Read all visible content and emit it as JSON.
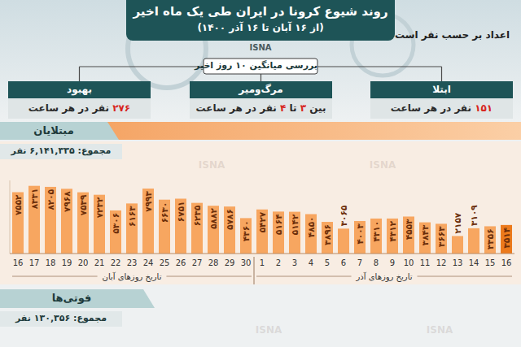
{
  "page": {
    "title": "روند شیوع کرونا در ایران طی یک ماه اخیر",
    "subtitle": "(از ۱۶ آبان تا ۱۶ آذر ۱۴۰۰)",
    "note": "اعداد بر حسب نفر است",
    "source": "ISNA",
    "watermark": "ISNA",
    "summary_title": "بررسی میانگین ۱۰ روز اخیر",
    "boxes": [
      {
        "label": "ابتلا",
        "parts": [
          {
            "text": "۱۵۱",
            "color": "#d7261e"
          },
          {
            "text": "نفر در هر ساعت"
          }
        ]
      },
      {
        "label": "مرگ‌ومیر",
        "parts": [
          {
            "text": "بین"
          },
          {
            "text": "۳",
            "color": "#d7261e"
          },
          {
            "text": "تا"
          },
          {
            "text": "۴",
            "color": "#d7261e"
          },
          {
            "text": "نفر در هر ساعت"
          }
        ]
      },
      {
        "label": "بهبود",
        "parts": [
          {
            "text": "۲۷۶",
            "color": "#d7261e"
          },
          {
            "text": "نفر در هر ساعت"
          }
        ]
      }
    ],
    "deaths": {
      "title": "فوتی‌ها",
      "total": "مجموع: ۱۳۰,۳۵۶ نفر"
    }
  },
  "chart_data": {
    "type": "bar",
    "title": "مبتلایان",
    "subtitle": "مجموع: ۶,۱۴۱,۳۳۵ نفر",
    "categories": [
      "16",
      "17",
      "18",
      "19",
      "20",
      "21",
      "22",
      "23",
      "24",
      "25",
      "26",
      "27",
      "28",
      "29",
      "30",
      "1",
      "2",
      "3",
      "4",
      "5",
      "6",
      "7",
      "8",
      "9",
      "10",
      "11",
      "12",
      "13",
      "14",
      "15",
      "16"
    ],
    "values": [
      7552,
      8331,
      8205,
      7968,
      7539,
      7232,
      5306,
      6163,
      7993,
      6630,
      6751,
      6235,
      5882,
      5786,
      4360,
      5427,
      5164,
      5142,
      4850,
      3896,
      3065,
      4003,
      4310,
      4312,
      4553,
      3843,
      3663,
      2157,
      3109,
      3356,
      3514
    ],
    "value_labels": [
      "۷۵۵۲",
      "۸۳۳۱",
      "۸۲۰۵",
      "۷۹۶۸",
      "۷۵۳۹",
      "۷۲۳۲",
      "۵۳۰۶",
      "۶۱۶۳",
      "۷۹۹۳",
      "۶۶۳۰",
      "۶۷۵۱",
      "۶۲۳۵",
      "۵۸۸۲",
      "۵۷۸۶",
      "۴۳۶۰",
      "۵۴۲۷",
      "۵۱۶۴",
      "۵۱۴۲",
      "۴۸۵۰",
      "۳۸۹۶",
      "۳۰۶۵",
      "۴۰۰۳",
      "۴۳۱۰",
      "۴۳۱۲",
      "۴۵۵۳",
      "۳۸۴۳",
      "۳۶۶۳",
      "۲۱۵۷",
      "۳۱۰۹",
      "۳۳۵۶",
      "۳۵۱۴"
    ],
    "colors": [
      "#f7a660",
      "#f7a660",
      "#f7a660",
      "#f7a660",
      "#f7a660",
      "#f7a660",
      "#f7a660",
      "#f7a660",
      "#f7a660",
      "#f7a660",
      "#f7a660",
      "#f7a660",
      "#f7a660",
      "#f7a660",
      "#f7a660",
      "#f7a660",
      "#f7a660",
      "#f7a660",
      "#f7a660",
      "#f7a660",
      "#f7a660",
      "#f7a660",
      "#f7a660",
      "#f7a660",
      "#f7a660",
      "#f7a660",
      "#f7a660",
      "#f7a660",
      "#f7a660",
      "#f7a660",
      "#ec7a1c"
    ],
    "ylim": [
      0,
      9000
    ],
    "data_labels": true,
    "tick_labels": "x",
    "grid": false,
    "annotations": [
      {
        "text": "تاریخ روزهای آبان"
      },
      {
        "text": "تاریخ روزهای آذر"
      }
    ]
  }
}
